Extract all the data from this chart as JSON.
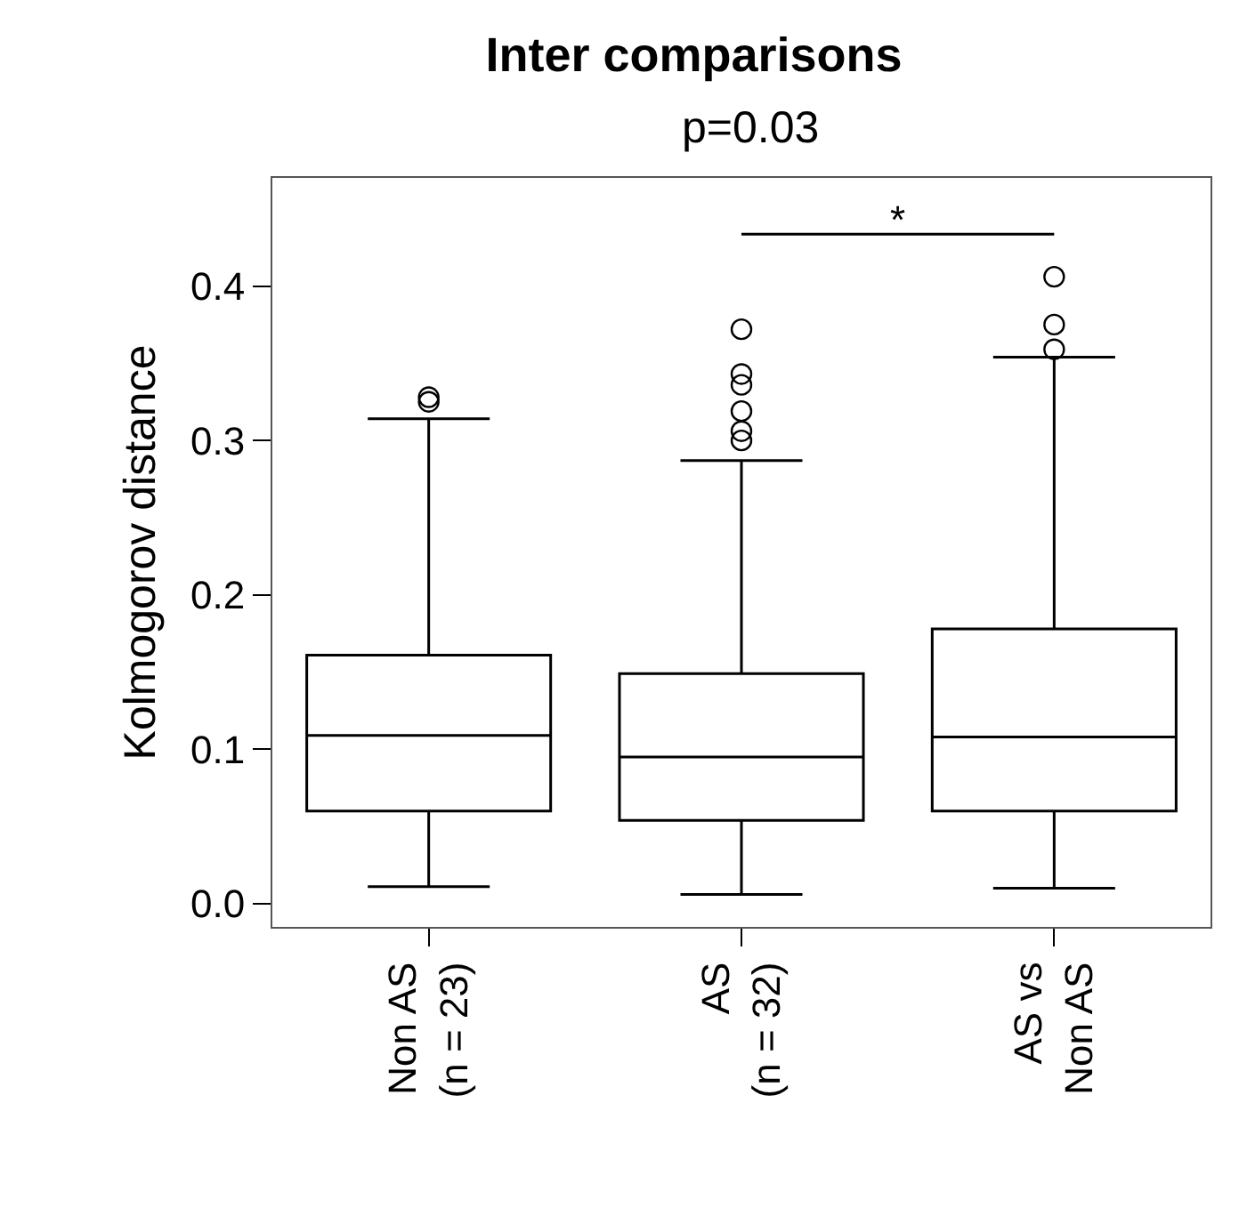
{
  "chart_data": {
    "type": "box",
    "title": "Inter comparisons",
    "subtitle": "p=0.03",
    "ylabel": "Kolmogorov distance",
    "categories": [
      "Non AS\n(n = 23)",
      "AS\n(n = 32)",
      "AS vs\nNon AS"
    ],
    "boxes": [
      {
        "low": 0.011,
        "q1": 0.06,
        "median": 0.109,
        "q3": 0.161,
        "high": 0.314,
        "outliers": [
          0.325,
          0.328
        ]
      },
      {
        "low": 0.006,
        "q1": 0.054,
        "median": 0.095,
        "q3": 0.149,
        "high": 0.287,
        "outliers": [
          0.3,
          0.306,
          0.319,
          0.336,
          0.343,
          0.372
        ]
      },
      {
        "low": 0.01,
        "q1": 0.06,
        "median": 0.108,
        "q3": 0.178,
        "high": 0.354,
        "outliers": [
          0.359,
          0.375,
          0.406
        ]
      }
    ],
    "color": "#000000",
    "ylim": [
      -0.015,
      0.47
    ],
    "yticks": [
      {
        "value": 0,
        "label": "0.0"
      },
      0.1,
      0.2,
      0.3,
      0.4
    ],
    "annotations": [
      "*"
    ],
    "grid": false
  }
}
